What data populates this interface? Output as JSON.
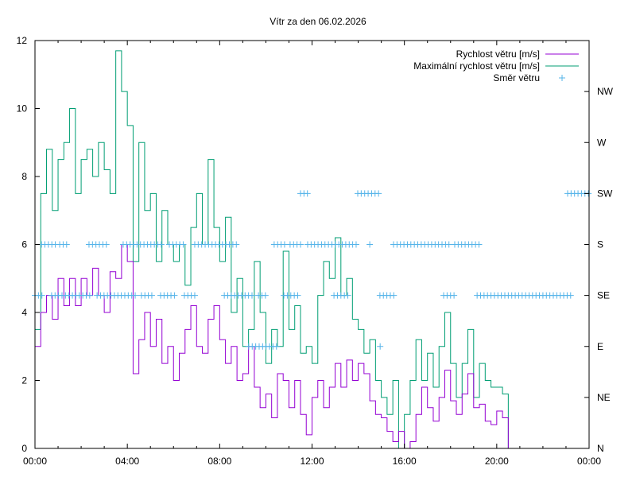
{
  "chart_data": {
    "type": "line",
    "title": "Vítr za den 06.02.2026",
    "xlabel": "",
    "ylabel": "",
    "xlim_hours": [
      0,
      24
    ],
    "ylim": [
      0,
      12
    ],
    "x_tick_labels": [
      "00:00",
      "04:00",
      "08:00",
      "12:00",
      "16:00",
      "20:00",
      "00:00"
    ],
    "y_tick_labels": [
      "0",
      "2",
      "4",
      "6",
      "8",
      "10",
      "12"
    ],
    "y2_tick_labels": [
      "N",
      "NE",
      "E",
      "SE",
      "S",
      "SW",
      "W",
      "NW"
    ],
    "legend_position": "top-right",
    "grid": false,
    "colors": {
      "speed": "#9400d3",
      "max": "#009e73",
      "direction": "#56b4e9"
    },
    "x_step_hours": 0.25,
    "series": [
      {
        "name": "Rychlost větru [m/s]",
        "style": "steps",
        "values": [
          3.0,
          4.0,
          4.5,
          3.8,
          5.0,
          4.2,
          5.0,
          4.2,
          5.0,
          4.5,
          5.3,
          4.5,
          4.0,
          5.2,
          5.0,
          6.0,
          5.5,
          2.2,
          3.2,
          4.0,
          3.0,
          3.8,
          2.5,
          3.0,
          2.0,
          2.8,
          3.5,
          4.2,
          3.0,
          2.8,
          3.8,
          4.2,
          3.2,
          2.5,
          3.0,
          2.0,
          2.2,
          3.0,
          1.8,
          1.2,
          1.6,
          0.9,
          2.2,
          2.0,
          1.2,
          2.0,
          1.0,
          0.4,
          1.5,
          2.0,
          1.2,
          1.8,
          2.5,
          1.8,
          2.6,
          2.0,
          2.5,
          2.2,
          1.4,
          1.0,
          0.9,
          0.5,
          0.2,
          0.5,
          0.0,
          0.2,
          1.0,
          1.8,
          1.2,
          0.8,
          1.5,
          2.3,
          1.4,
          1.0,
          1.6,
          2.2,
          1.2,
          1.3,
          0.8,
          0.7,
          1.1,
          0.9,
          0.0
        ]
      },
      {
        "name": "Maximální rychlost větru [m/s]",
        "style": "steps",
        "values": [
          3.5,
          7.5,
          8.8,
          7.0,
          8.5,
          9.0,
          10.0,
          7.5,
          8.5,
          8.8,
          8.0,
          9.0,
          8.2,
          7.5,
          11.7,
          10.5,
          9.5,
          5.5,
          9.0,
          7.0,
          7.5,
          5.5,
          7.0,
          6.0,
          5.5,
          6.0,
          4.8,
          6.5,
          7.5,
          6.0,
          8.5,
          6.5,
          5.5,
          6.8,
          4.0,
          5.0,
          3.0,
          3.5,
          5.5,
          4.0,
          2.5,
          3.5,
          3.0,
          5.8,
          3.5,
          4.2,
          2.8,
          3.0,
          2.5,
          4.5,
          5.5,
          5.0,
          6.2,
          4.5,
          5.0,
          3.8,
          3.5,
          2.8,
          3.2,
          2.0,
          1.5,
          1.0,
          2.0,
          0.0,
          1.0,
          2.0,
          3.2,
          2.0,
          2.8,
          1.8,
          3.0,
          4.0,
          2.5,
          1.5,
          2.5,
          3.5,
          1.5,
          2.5,
          2.0,
          1.8,
          1.8,
          1.6,
          0.0
        ]
      },
      {
        "name": "Směr větru",
        "style": "points",
        "direction_scale": {
          "N": 0,
          "NE": 1.5,
          "E": 3,
          "SE": 4.5,
          "S": 6,
          "SW": 7.5,
          "W": 9,
          "NW": 10.5
        },
        "runs_hours": [
          {
            "dir": "SE",
            "from": 0.0,
            "to": 0.31
          },
          {
            "dir": "SE",
            "from": 0.72,
            "to": 2.45
          },
          {
            "dir": "SE",
            "from": 2.69,
            "to": 4.44
          },
          {
            "dir": "SE",
            "from": 4.61,
            "to": 5.13
          },
          {
            "dir": "SE",
            "from": 5.44,
            "to": 6.13
          },
          {
            "dir": "SE",
            "from": 6.47,
            "to": 7.02
          },
          {
            "dir": "SE",
            "from": 8.2,
            "to": 9.4
          },
          {
            "dir": "SE",
            "from": 9.68,
            "to": 10.12
          },
          {
            "dir": "SE",
            "from": 10.78,
            "to": 11.4
          },
          {
            "dir": "SE",
            "from": 12.95,
            "to": 13.64
          },
          {
            "dir": "SE",
            "from": 14.94,
            "to": 15.63
          },
          {
            "dir": "SE",
            "from": 17.7,
            "to": 18.29
          },
          {
            "dir": "SE",
            "from": 19.15,
            "to": 23.2
          },
          {
            "dir": "S",
            "from": 0.28,
            "to": 0.9
          },
          {
            "dir": "S",
            "from": 1.07,
            "to": 1.48
          },
          {
            "dir": "S",
            "from": 2.34,
            "to": 3.13
          },
          {
            "dir": "S",
            "from": 3.82,
            "to": 5.54
          },
          {
            "dir": "S",
            "from": 5.82,
            "to": 6.51
          },
          {
            "dir": "S",
            "from": 6.92,
            "to": 8.82
          },
          {
            "dir": "S",
            "from": 10.36,
            "to": 10.88
          },
          {
            "dir": "S",
            "from": 11.05,
            "to": 11.64
          },
          {
            "dir": "S",
            "from": 11.81,
            "to": 14.05
          },
          {
            "dir": "S",
            "from": 14.5,
            "to": 14.6
          },
          {
            "dir": "S",
            "from": 15.53,
            "to": 18.01
          },
          {
            "dir": "S",
            "from": 18.18,
            "to": 19.25
          },
          {
            "dir": "SW",
            "from": 11.5,
            "to": 11.91
          },
          {
            "dir": "SW",
            "from": 13.98,
            "to": 15.01
          },
          {
            "dir": "SW",
            "from": 23.07,
            "to": 24.0
          },
          {
            "dir": "E",
            "from": 9.26,
            "to": 10.47
          },
          {
            "dir": "E",
            "from": 14.95,
            "to": 14.95
          }
        ]
      }
    ]
  }
}
